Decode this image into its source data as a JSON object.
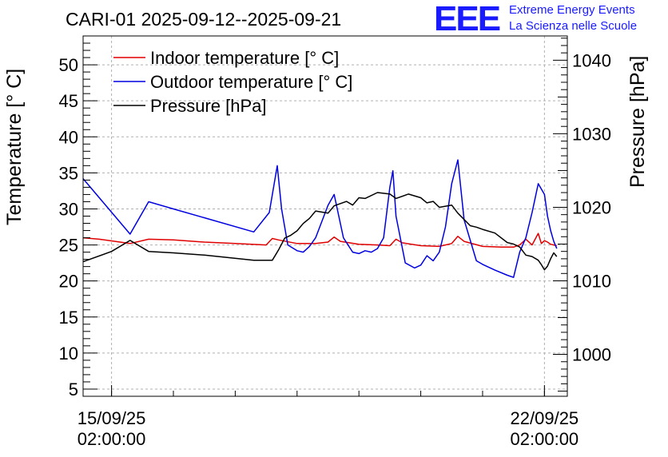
{
  "header": {
    "logo_text": "EEE",
    "org_line1": "Extreme Energy Events",
    "org_line2": "La Scienza nelle Scuole"
  },
  "colors": {
    "indoor": "#e00000",
    "outdoor": "#0000e0",
    "pressure": "#000000",
    "logo": "#1a1aff"
  },
  "chart_data": {
    "type": "line",
    "title": "CARI-01 2025-09-12--2025-09-21",
    "ylabel": "Temperature [° C]",
    "y2label": "Pressure [hPa]",
    "ylim": [
      4,
      54
    ],
    "y2lim": [
      994.3,
      1043.3
    ],
    "xlim_days": [
      -0.46,
      7.37
    ],
    "xticks": [
      {
        "day": 0,
        "date": "15/09/25",
        "time": "02:00:00"
      },
      {
        "day": 7,
        "date": "22/09/25",
        "time": "02:00:00"
      }
    ],
    "yticks": [
      5,
      10,
      15,
      20,
      25,
      30,
      35,
      40,
      45,
      50
    ],
    "y2ticks": [
      1000,
      1010,
      1020,
      1030,
      1040
    ],
    "x_unit": "days since 15/09/25 02:00:00",
    "legend": [
      {
        "label": "Indoor temperature [° C]",
        "color": "#e00000"
      },
      {
        "label": "Outdoor temperature [° C]",
        "color": "#0000e0"
      },
      {
        "label": "Pressure [hPa]",
        "color": "#000000"
      }
    ],
    "legend_position": "top-left",
    "grid": true,
    "series": [
      {
        "name": "Indoor temperature [° C]",
        "axis": "left",
        "color": "#e00000",
        "x": [
          -0.46,
          -0.2,
          0.3,
          0.6,
          1.0,
          1.5,
          2.0,
          2.5,
          2.6,
          2.7,
          3.0,
          3.3,
          3.5,
          3.6,
          3.7,
          4.0,
          4.3,
          4.5,
          4.6,
          4.7,
          5.0,
          5.3,
          5.5,
          5.6,
          5.7,
          6.0,
          6.3,
          6.5,
          6.6,
          6.7,
          6.8,
          6.9,
          6.95,
          7.0,
          7.05,
          7.1,
          7.15,
          7.2
        ],
        "values": [
          26.0,
          25.8,
          25.2,
          25.8,
          25.7,
          25.4,
          25.2,
          25.0,
          25.9,
          25.7,
          25.2,
          25.2,
          25.4,
          26.1,
          25.5,
          25.1,
          25.0,
          24.9,
          25.8,
          25.3,
          24.9,
          24.8,
          25.2,
          26.2,
          25.5,
          24.8,
          24.7,
          24.7,
          25.0,
          25.8,
          25.0,
          26.6,
          25.2,
          25.6,
          25.4,
          25.1,
          25.0,
          24.9
        ]
      },
      {
        "name": "Outdoor temperature [° C]",
        "axis": "left",
        "color": "#0000e0",
        "x": [
          -0.46,
          0.3,
          0.6,
          1.0,
          2.3,
          2.55,
          2.68,
          2.75,
          2.85,
          3.0,
          3.1,
          3.2,
          3.3,
          3.5,
          3.6,
          3.75,
          3.9,
          4.0,
          4.1,
          4.2,
          4.3,
          4.4,
          4.5,
          4.55,
          4.6,
          4.75,
          4.9,
          5.0,
          5.1,
          5.2,
          5.3,
          5.4,
          5.5,
          5.6,
          5.7,
          5.9,
          6.0,
          6.2,
          6.4,
          6.5,
          6.6,
          6.7,
          6.8,
          6.9,
          7.0,
          7.05,
          7.1,
          7.15,
          7.2
        ],
        "values": [
          34.2,
          26.5,
          31.0,
          30.0,
          26.8,
          29.5,
          36.0,
          30.0,
          25.0,
          24.2,
          24.0,
          24.8,
          26.0,
          30.5,
          32.0,
          26.0,
          24.0,
          23.8,
          24.2,
          24.0,
          24.5,
          26.0,
          33.0,
          35.3,
          29.0,
          22.5,
          21.8,
          22.2,
          23.5,
          22.8,
          24.0,
          27.5,
          33.5,
          36.8,
          28.5,
          22.8,
          22.3,
          21.5,
          20.8,
          20.5,
          24.0,
          26.0,
          29.5,
          33.5,
          32.0,
          29.0,
          27.0,
          25.5,
          24.5
        ]
      },
      {
        "name": "Pressure [hPa]",
        "axis": "right",
        "color": "#000000",
        "x": [
          -0.46,
          0.0,
          0.3,
          0.6,
          1.0,
          1.5,
          2.3,
          2.6,
          2.65,
          2.7,
          2.8,
          2.9,
          3.0,
          3.1,
          3.2,
          3.3,
          3.5,
          3.6,
          3.8,
          3.9,
          4.0,
          4.1,
          4.3,
          4.5,
          4.6,
          4.8,
          5.0,
          5.1,
          5.2,
          5.3,
          5.5,
          5.6,
          5.8,
          5.9,
          6.0,
          6.2,
          6.4,
          6.5,
          6.6,
          6.7,
          6.8,
          6.9,
          6.95,
          7.0,
          7.05,
          7.1,
          7.15,
          7.2
        ],
        "values": [
          1012.6,
          1014.0,
          1015.5,
          1014.0,
          1013.8,
          1013.5,
          1012.8,
          1012.8,
          1013.5,
          1014.2,
          1015.8,
          1016.2,
          1016.8,
          1017.8,
          1018.5,
          1019.5,
          1019.2,
          1020.2,
          1020.8,
          1020.3,
          1021.3,
          1021.2,
          1022.0,
          1021.8,
          1021.2,
          1021.8,
          1021.3,
          1020.6,
          1020.8,
          1020.0,
          1020.3,
          1019.2,
          1017.5,
          1017.3,
          1017.0,
          1016.5,
          1015.2,
          1015.0,
          1014.6,
          1013.5,
          1013.3,
          1012.8,
          1012.2,
          1011.5,
          1012.0,
          1013.0,
          1013.8,
          1013.3
        ]
      }
    ]
  }
}
